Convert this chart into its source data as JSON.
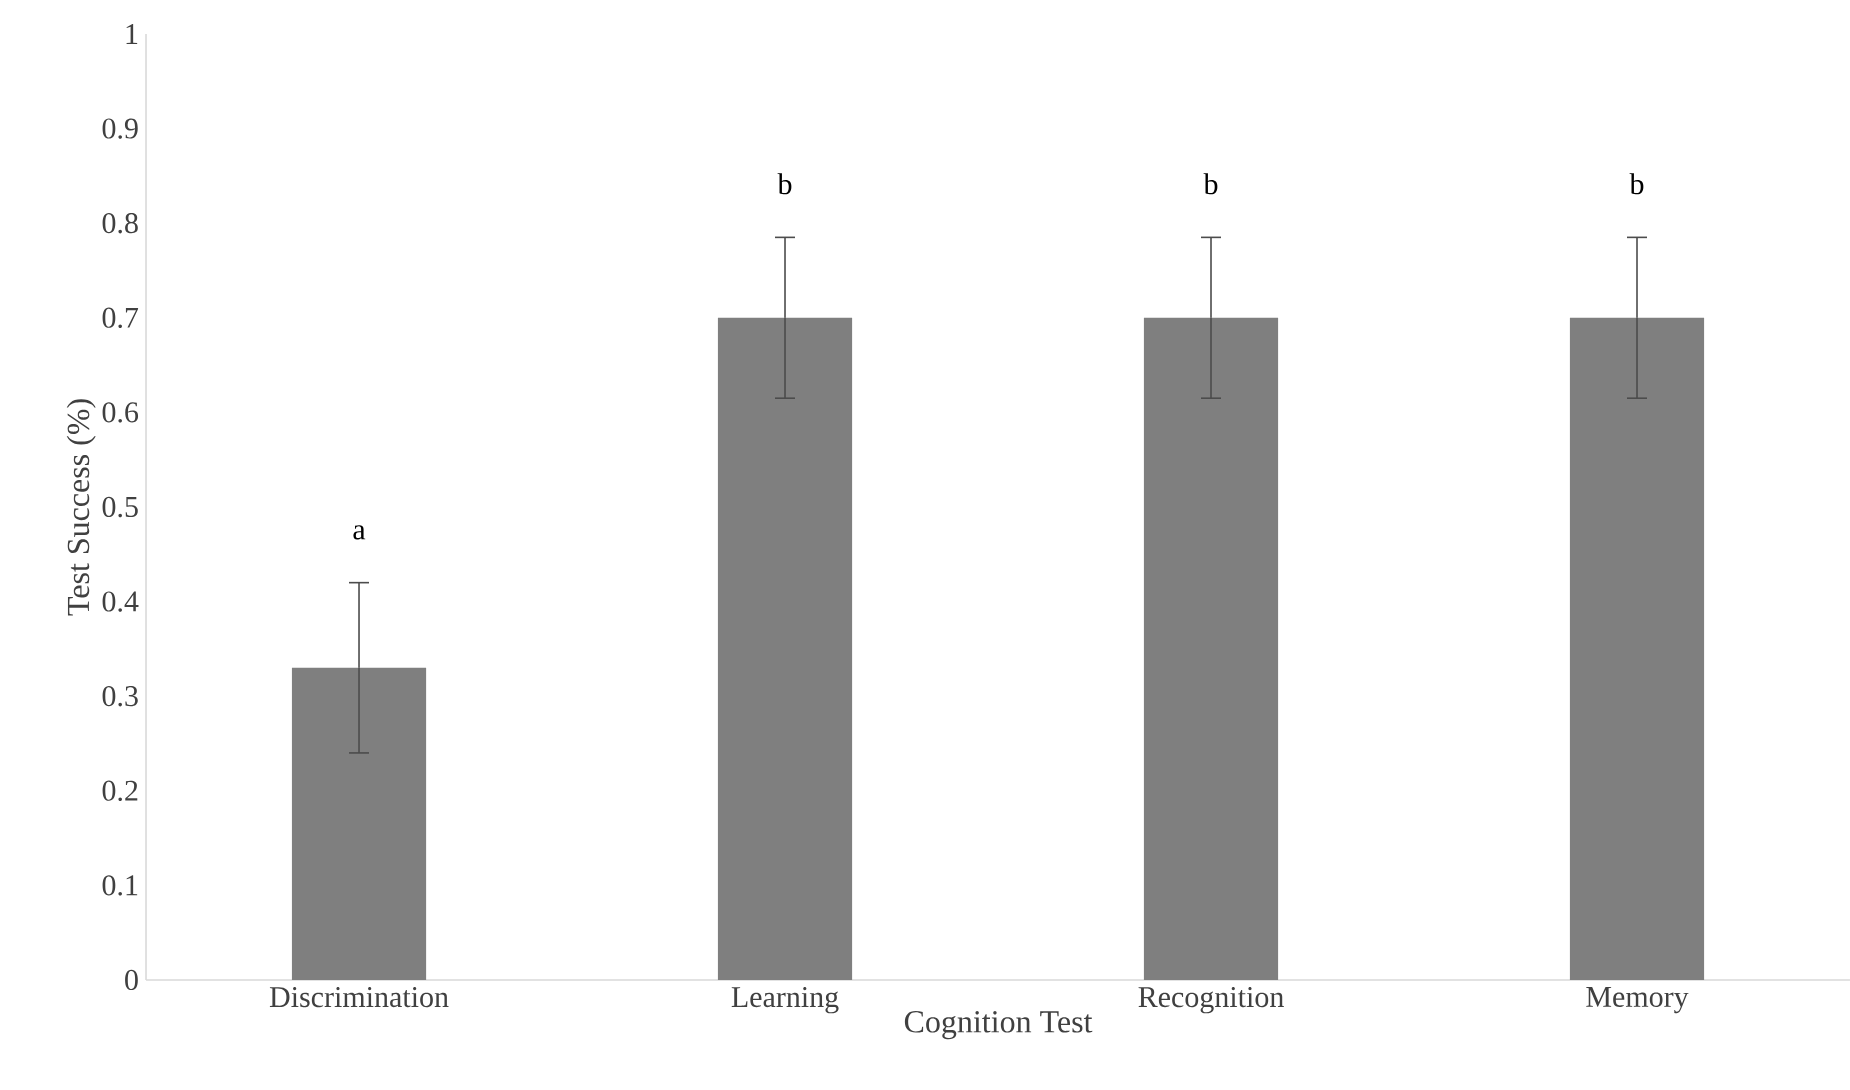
{
  "chart_data": {
    "type": "bar",
    "xlabel": "Cognition Test",
    "ylabel": "Test Success (%)",
    "categories": [
      "Discrimination",
      "Learning",
      "Recognition",
      "Memory"
    ],
    "values": [
      0.33,
      0.7,
      0.7,
      0.7
    ],
    "errors": [
      0.09,
      0.085,
      0.085,
      0.085
    ],
    "color": "#7f7f7f",
    "ylim": [
      0,
      1
    ],
    "yticks": [
      0,
      0.1,
      0.2,
      0.3,
      0.4,
      0.5,
      0.6,
      0.7,
      0.8,
      0.9,
      1
    ],
    "grid": false,
    "annotations": [
      "a",
      "b",
      "b",
      "b"
    ]
  }
}
